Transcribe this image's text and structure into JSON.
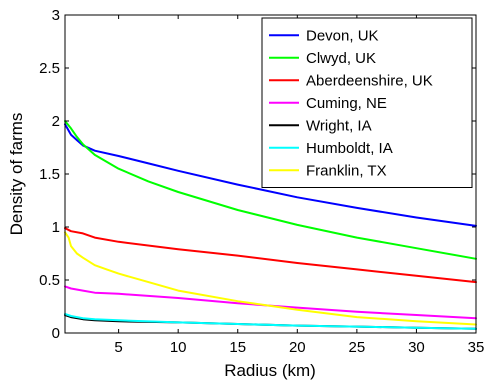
{
  "chart_data": {
    "type": "line",
    "title": "",
    "xlabel": "Radius (km)",
    "ylabel": "Density of farms",
    "xlim": [
      0.5,
      35
    ],
    "ylim": [
      0,
      3
    ],
    "xticks": [
      5,
      10,
      15,
      20,
      25,
      30,
      35
    ],
    "yticks": [
      0,
      0.5,
      1,
      1.5,
      2,
      2.5,
      3
    ],
    "ytick_labels": [
      "0",
      "0.5",
      "1",
      "1.5",
      "2",
      "2.5",
      "3"
    ],
    "legend_position": "top-right",
    "series": [
      {
        "name": "Devon, UK",
        "color": "#0000ff",
        "x": [
          0.5,
          1,
          1.5,
          2,
          3,
          5,
          7.5,
          10,
          15,
          20,
          25,
          30,
          35
        ],
        "y": [
          1.97,
          1.87,
          1.82,
          1.77,
          1.72,
          1.67,
          1.6,
          1.53,
          1.4,
          1.28,
          1.18,
          1.09,
          1.01
        ]
      },
      {
        "name": "Clwyd, UK",
        "color": "#00ff00",
        "x": [
          0.5,
          1,
          1.5,
          2,
          3,
          5,
          7.5,
          10,
          15,
          20,
          25,
          30,
          35
        ],
        "y": [
          2.0,
          1.93,
          1.85,
          1.78,
          1.68,
          1.55,
          1.43,
          1.33,
          1.16,
          1.02,
          0.9,
          0.8,
          0.7
        ]
      },
      {
        "name": "Aberdeenshire, UK",
        "color": "#ff0000",
        "x": [
          0.5,
          1,
          2,
          3,
          5,
          10,
          15,
          20,
          25,
          30,
          35
        ],
        "y": [
          0.99,
          0.96,
          0.94,
          0.9,
          0.86,
          0.79,
          0.73,
          0.66,
          0.6,
          0.54,
          0.48
        ]
      },
      {
        "name": "Cuming, NE",
        "color": "#ff00ff",
        "x": [
          0.5,
          1,
          2,
          3,
          5,
          10,
          15,
          20,
          25,
          30,
          35
        ],
        "y": [
          0.44,
          0.42,
          0.4,
          0.38,
          0.37,
          0.33,
          0.28,
          0.24,
          0.2,
          0.17,
          0.14
        ]
      },
      {
        "name": "Wright, IA",
        "color": "#000000",
        "x": [
          0.5,
          1,
          2,
          3,
          5,
          10,
          15,
          20,
          25,
          30,
          35
        ],
        "y": [
          0.17,
          0.15,
          0.13,
          0.12,
          0.11,
          0.1,
          0.085,
          0.07,
          0.06,
          0.05,
          0.04
        ]
      },
      {
        "name": "Humboldt, IA",
        "color": "#00ffff",
        "x": [
          0.5,
          1,
          2,
          3,
          5,
          10,
          15,
          20,
          25,
          30,
          35
        ],
        "y": [
          0.18,
          0.16,
          0.14,
          0.13,
          0.12,
          0.1,
          0.085,
          0.07,
          0.06,
          0.05,
          0.04
        ]
      },
      {
        "name": "Franklin, TX",
        "color": "#ffff00",
        "x": [
          0.5,
          0.8,
          1,
          1.5,
          2,
          3,
          4,
          5,
          7.5,
          10,
          15,
          20,
          25,
          30,
          35
        ],
        "y": [
          0.95,
          0.9,
          0.82,
          0.75,
          0.71,
          0.64,
          0.6,
          0.56,
          0.48,
          0.4,
          0.3,
          0.22,
          0.15,
          0.11,
          0.08
        ]
      }
    ]
  }
}
